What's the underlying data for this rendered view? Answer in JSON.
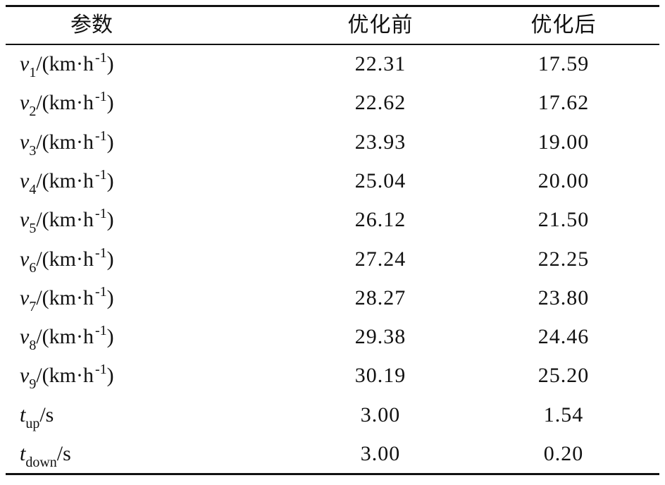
{
  "table": {
    "header": [
      "参数",
      "优化前",
      "优化后"
    ],
    "rows": [
      [
        {
          "symbol": "v",
          "subscript": "1",
          "unit": "/(km·h",
          "unit_exponent": "-1",
          "unit_close": ")"
        },
        "22.31",
        "17.59"
      ],
      [
        {
          "symbol": "v",
          "subscript": "2",
          "unit": "/(km·h",
          "unit_exponent": "-1",
          "unit_close": ")"
        },
        "22.62",
        "17.62"
      ],
      [
        {
          "symbol": "v",
          "subscript": "3",
          "unit": "/(km·h",
          "unit_exponent": "-1",
          "unit_close": ")"
        },
        "23.93",
        "19.00"
      ],
      [
        {
          "symbol": "v",
          "subscript": "4",
          "unit": "/(km·h",
          "unit_exponent": "-1",
          "unit_close": ")"
        },
        "25.04",
        "20.00"
      ],
      [
        {
          "symbol": "v",
          "subscript": "5",
          "unit": "/(km·h",
          "unit_exponent": "-1",
          "unit_close": ")"
        },
        "26.12",
        "21.50"
      ],
      [
        {
          "symbol": "v",
          "subscript": "6",
          "unit": "/(km·h",
          "unit_exponent": "-1",
          "unit_close": ")"
        },
        "27.24",
        "22.25"
      ],
      [
        {
          "symbol": "v",
          "subscript": "7",
          "unit": "/(km·h",
          "unit_exponent": "-1",
          "unit_close": ")"
        },
        "28.27",
        "23.80"
      ],
      [
        {
          "symbol": "v",
          "subscript": "8",
          "unit": "/(km·h",
          "unit_exponent": "-1",
          "unit_close": ")"
        },
        "29.38",
        "24.46"
      ],
      [
        {
          "symbol": "v",
          "subscript": "9",
          "unit": "/(km·h",
          "unit_exponent": "-1",
          "unit_close": ")"
        },
        "30.19",
        "25.20"
      ],
      [
        {
          "symbol": "t",
          "subscript": "up",
          "unit": "/s"
        },
        "3.00",
        "1.54"
      ],
      [
        {
          "symbol": "t",
          "subscript": "down",
          "unit": "/s"
        },
        "3.00",
        "0.20"
      ]
    ]
  }
}
